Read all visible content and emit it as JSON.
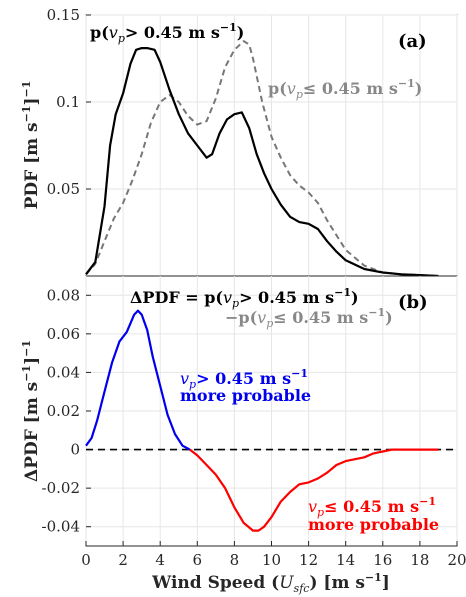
{
  "chart_data": [
    {
      "panel": "(a)",
      "type": "line",
      "ylabel": "PDF [m s⁻¹]⁻¹",
      "xlim": [
        0,
        20
      ],
      "ylim": [
        0,
        0.15
      ],
      "yticks": [
        "0.05",
        "0.1",
        "0.15"
      ],
      "grid": true,
      "series": [
        {
          "name": "p(v_p > 0.45 m s⁻¹)",
          "color": "#000000",
          "style": "solid",
          "x": [
            0,
            0.5,
            1,
            1.3,
            1.6,
            2,
            2.4,
            2.7,
            3,
            3.3,
            3.7,
            4,
            4.5,
            5,
            5.5,
            6,
            6.5,
            6.8,
            7.2,
            7.6,
            8,
            8.4,
            8.8,
            9.2,
            9.6,
            10,
            10.5,
            11,
            11.5,
            12,
            12.5,
            13,
            13.5,
            14,
            15,
            16,
            17,
            18,
            19
          ],
          "y": [
            0.001,
            0.008,
            0.04,
            0.075,
            0.093,
            0.105,
            0.122,
            0.13,
            0.131,
            0.131,
            0.13,
            0.123,
            0.107,
            0.093,
            0.082,
            0.075,
            0.068,
            0.07,
            0.082,
            0.09,
            0.093,
            0.094,
            0.085,
            0.07,
            0.059,
            0.05,
            0.041,
            0.034,
            0.031,
            0.03,
            0.027,
            0.02,
            0.014,
            0.009,
            0.004,
            0.002,
            0.001,
            0.0005,
            0
          ]
        },
        {
          "name": "p(v_p ≤ 0.45 m s⁻¹)",
          "color": "#777777",
          "style": "dashed",
          "x": [
            0,
            0.5,
            1,
            1.5,
            2,
            2.5,
            3,
            3.5,
            4,
            4.5,
            5,
            5.5,
            6,
            6.5,
            7,
            7.5,
            8,
            8.5,
            8.8,
            9,
            9.5,
            10,
            10.5,
            11,
            11.5,
            12,
            12.5,
            13,
            14,
            15,
            16,
            17,
            18,
            19
          ],
          "y": [
            0.001,
            0.007,
            0.02,
            0.033,
            0.042,
            0.055,
            0.07,
            0.088,
            0.1,
            0.104,
            0.1,
            0.092,
            0.087,
            0.089,
            0.102,
            0.12,
            0.13,
            0.135,
            0.133,
            0.125,
            0.1,
            0.08,
            0.068,
            0.058,
            0.052,
            0.048,
            0.042,
            0.032,
            0.015,
            0.006,
            0.002,
            0.001,
            0.0005,
            0
          ]
        }
      ]
    },
    {
      "panel": "(b)",
      "type": "line",
      "xlabel": "Wind Speed (U_sfc) [m s⁻¹]",
      "ylabel": "ΔPDF [m s⁻¹]⁻¹",
      "xlim": [
        0,
        20
      ],
      "ylim": [
        -0.05,
        0.09
      ],
      "xticks": [
        "0",
        "2",
        "4",
        "6",
        "8",
        "10",
        "12",
        "14",
        "16",
        "18",
        "20"
      ],
      "yticks": [
        "-0.04",
        "-0.02",
        "0",
        "0.02",
        "0.04",
        "0.06",
        "0.08"
      ],
      "grid": true,
      "zero_line": true,
      "series": [
        {
          "name": "ΔPDF",
          "x": [
            0,
            0.3,
            0.6,
            1,
            1.4,
            1.8,
            2.2,
            2.6,
            2.8,
            3,
            3.3,
            3.6,
            4,
            4.4,
            4.8,
            5.2,
            5.6,
            6,
            6.5,
            7,
            7.5,
            8,
            8.5,
            9,
            9.3,
            9.6,
            10,
            10.5,
            11,
            11.5,
            12,
            12.5,
            13,
            13.5,
            14,
            14.5,
            15,
            15.5,
            16,
            16.5,
            17,
            18,
            19
          ],
          "y": [
            0.002,
            0.006,
            0.015,
            0.03,
            0.045,
            0.056,
            0.061,
            0.07,
            0.072,
            0.07,
            0.062,
            0.048,
            0.033,
            0.018,
            0.008,
            0.002,
            0,
            -0.003,
            -0.008,
            -0.013,
            -0.02,
            -0.03,
            -0.038,
            -0.042,
            -0.042,
            -0.04,
            -0.035,
            -0.027,
            -0.022,
            -0.018,
            -0.017,
            -0.015,
            -0.012,
            -0.008,
            -0.006,
            -0.005,
            -0.004,
            -0.002,
            -0.001,
            0,
            0,
            0,
            0
          ],
          "positive_color": "#0000ee",
          "negative_color": "#ff0000"
        }
      ]
    }
  ],
  "labels": {
    "a_black_base": "p(",
    "a_black_var": "v",
    "a_black_sub": "p",
    "a_black_rest": "> 0.45 m s",
    "a_black_sup": "−1",
    "a_black_close": ")",
    "a_grey_base": "p(",
    "a_grey_var": "v",
    "a_grey_sub": "p",
    "a_grey_rest": "≤ 0.45 m s",
    "a_grey_sup": "−1",
    "a_grey_close": ")",
    "b_eq1_base": "ΔPDF = p(",
    "b_eq1_var": "v",
    "b_eq1_sub": "p",
    "b_eq1_rest": "> 0.45 m s",
    "b_eq1_sup": "−1",
    "b_eq1_close": ")",
    "b_eq2_base": "−p(",
    "b_eq2_var": "v",
    "b_eq2_sub": "p",
    "b_eq2_rest": "≤ 0.45 m s",
    "b_eq2_sup": "−1",
    "b_eq2_close": ")",
    "blue_var": "v",
    "blue_sub": "p",
    "blue_rest": "> 0.45 m s",
    "blue_sup": "−1",
    "blue_line2": "more probable",
    "red_var": "v",
    "red_sub": "p",
    "red_rest": "≤ 0.45 m s",
    "red_sup": "−1",
    "red_line2": "more probable",
    "ylabel_a_main": "PDF [m s",
    "ylabel_a_sup": "−1",
    "ylabel_a_close": "]",
    "ylabel_a_sup2": "−1",
    "ylabel_b_main": "ΔPDF [m s",
    "ylabel_b_sup": "−1",
    "ylabel_b_close": "]",
    "ylabel_b_sup2": "−1",
    "xlabel_main": "Wind Speed (",
    "xlabel_var": "U",
    "xlabel_sub": "sfc",
    "xlabel_close": ") [m s",
    "xlabel_sup": "−1",
    "xlabel_end": "]"
  }
}
